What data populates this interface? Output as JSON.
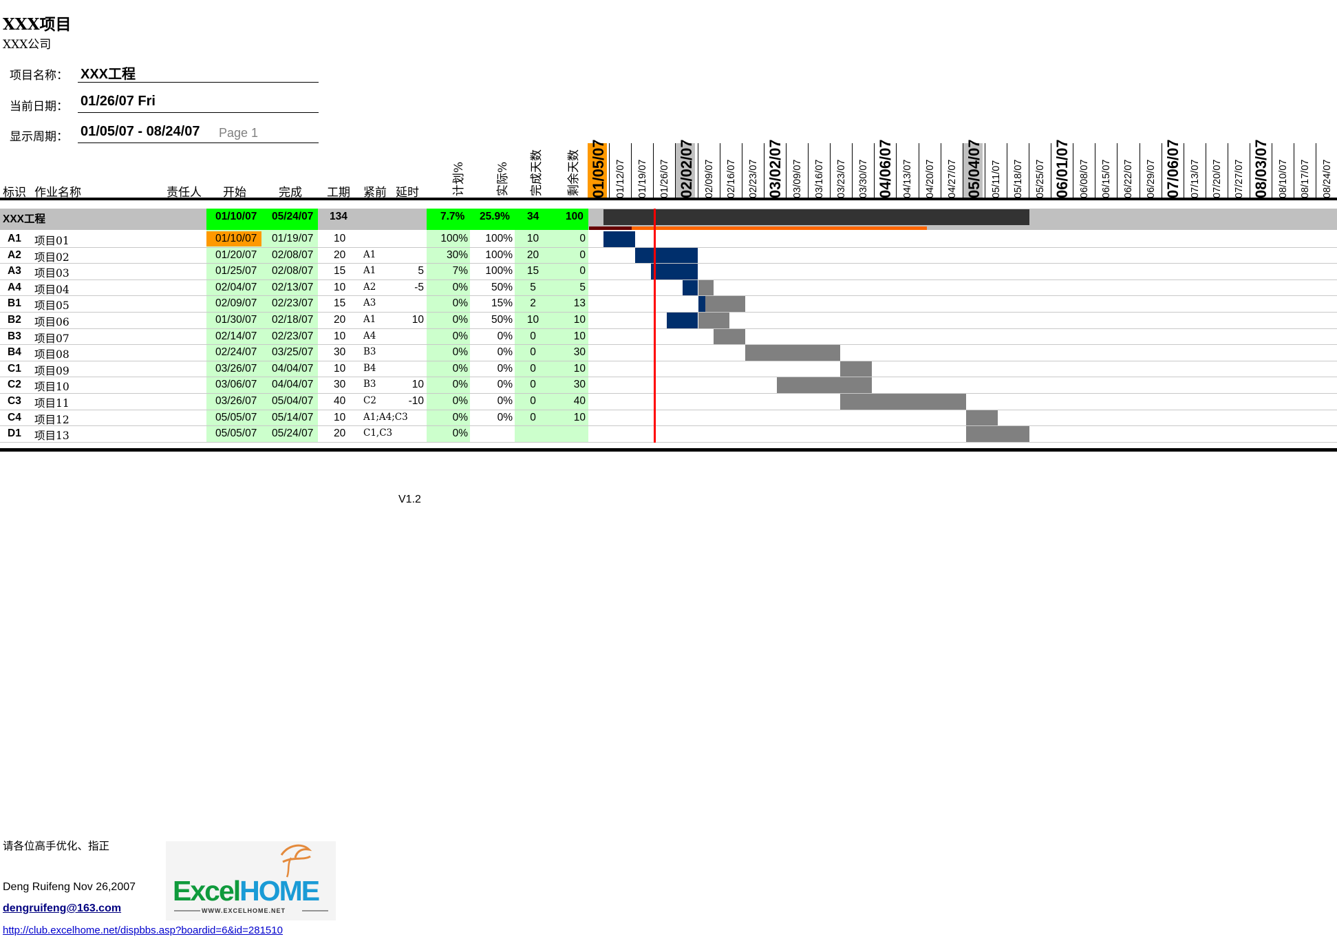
{
  "header": {
    "title": "XXX项目",
    "company": "XXX公司",
    "project_label": "项目名称：",
    "project_value": "XXX工程",
    "date_label": "当前日期：",
    "date_value": "01/26/07 Fri",
    "period_label": "显示周期：",
    "period_value": "01/05/07 - 08/24/07",
    "page": "Page 1"
  },
  "columns": {
    "id": "标识",
    "name": "作业名称",
    "owner": "责任人",
    "start": "开始",
    "finish": "完成",
    "duration": "工期",
    "pred": "紧前",
    "delay": "延时",
    "plan_pct": "计划%",
    "actual_pct": "实际%",
    "done_days": "完成天数",
    "remain_days": "剩余天数"
  },
  "summary": {
    "name": "XXX工程",
    "start": "01/10/07",
    "finish": "05/24/07",
    "duration": "134",
    "plan_pct": "7.7%",
    "actual_pct": "25.9%",
    "done_days": "34",
    "remain_days": "100"
  },
  "tasks": [
    {
      "id": "A1",
      "name": "项目01",
      "start": "01/10/07",
      "finish": "01/19/07",
      "duration": "10",
      "pred": "",
      "delay": "",
      "plan": "100%",
      "actual": "100%",
      "done": "10",
      "remain": "0"
    },
    {
      "id": "A2",
      "name": "项目02",
      "start": "01/20/07",
      "finish": "02/08/07",
      "duration": "20",
      "pred": "A1",
      "delay": "",
      "plan": "30%",
      "actual": "100%",
      "done": "20",
      "remain": "0"
    },
    {
      "id": "A3",
      "name": "项目03",
      "start": "01/25/07",
      "finish": "02/08/07",
      "duration": "15",
      "pred": "A1",
      "delay": "5",
      "plan": "7%",
      "actual": "100%",
      "done": "15",
      "remain": "0"
    },
    {
      "id": "A4",
      "name": "项目04",
      "start": "02/04/07",
      "finish": "02/13/07",
      "duration": "10",
      "pred": "A2",
      "delay": "-5",
      "plan": "0%",
      "actual": "50%",
      "done": "5",
      "remain": "5"
    },
    {
      "id": "B1",
      "name": "项目05",
      "start": "02/09/07",
      "finish": "02/23/07",
      "duration": "15",
      "pred": "A3",
      "delay": "",
      "plan": "0%",
      "actual": "15%",
      "done": "2",
      "remain": "13"
    },
    {
      "id": "B2",
      "name": "项目06",
      "start": "01/30/07",
      "finish": "02/18/07",
      "duration": "20",
      "pred": "A1",
      "delay": "10",
      "plan": "0%",
      "actual": "50%",
      "done": "10",
      "remain": "10"
    },
    {
      "id": "B3",
      "name": "项目07",
      "start": "02/14/07",
      "finish": "02/23/07",
      "duration": "10",
      "pred": "A4",
      "delay": "",
      "plan": "0%",
      "actual": "0%",
      "done": "0",
      "remain": "10"
    },
    {
      "id": "B4",
      "name": "项目08",
      "start": "02/24/07",
      "finish": "03/25/07",
      "duration": "30",
      "pred": "B3",
      "delay": "",
      "plan": "0%",
      "actual": "0%",
      "done": "0",
      "remain": "30"
    },
    {
      "id": "C1",
      "name": "项目09",
      "start": "03/26/07",
      "finish": "04/04/07",
      "duration": "10",
      "pred": "B4",
      "delay": "",
      "plan": "0%",
      "actual": "0%",
      "done": "0",
      "remain": "10"
    },
    {
      "id": "C2",
      "name": "项目10",
      "start": "03/06/07",
      "finish": "04/04/07",
      "duration": "30",
      "pred": "B3",
      "delay": "10",
      "plan": "0%",
      "actual": "0%",
      "done": "0",
      "remain": "30"
    },
    {
      "id": "C3",
      "name": "项目11",
      "start": "03/26/07",
      "finish": "05/04/07",
      "duration": "40",
      "pred": "C2",
      "delay": "-10",
      "plan": "0%",
      "actual": "0%",
      "done": "0",
      "remain": "40"
    },
    {
      "id": "C4",
      "name": "项目12",
      "start": "05/05/07",
      "finish": "05/14/07",
      "duration": "10",
      "pred": "A1;A4;C3",
      "delay": "",
      "plan": "0%",
      "actual": "0%",
      "done": "0",
      "remain": "10"
    },
    {
      "id": "D1",
      "name": "项目13",
      "start": "05/05/07",
      "finish": "05/24/07",
      "duration": "20",
      "pred": "C1,C3",
      "delay": "",
      "plan": "0%",
      "actual": "",
      "done": "",
      "remain": ""
    }
  ],
  "week_dates": [
    {
      "label": "01/05/07",
      "big": true,
      "shade": "#ff9900"
    },
    {
      "label": "01/12/07"
    },
    {
      "label": "01/19/07"
    },
    {
      "label": "01/26/07"
    },
    {
      "label": "02/02/07",
      "big": true,
      "shade": "#c0c0c0"
    },
    {
      "label": "02/09/07"
    },
    {
      "label": "02/16/07"
    },
    {
      "label": "02/23/07"
    },
    {
      "label": "03/02/07",
      "big": true
    },
    {
      "label": "03/09/07"
    },
    {
      "label": "03/16/07"
    },
    {
      "label": "03/23/07"
    },
    {
      "label": "03/30/07"
    },
    {
      "label": "04/06/07",
      "big": true
    },
    {
      "label": "04/13/07"
    },
    {
      "label": "04/20/07"
    },
    {
      "label": "04/27/07"
    },
    {
      "label": "05/04/07",
      "big": true,
      "shade": "#c0c0c0"
    },
    {
      "label": "05/11/07"
    },
    {
      "label": "05/18/07"
    },
    {
      "label": "05/25/07"
    },
    {
      "label": "06/01/07",
      "big": true
    },
    {
      "label": "06/08/07"
    },
    {
      "label": "06/15/07"
    },
    {
      "label": "06/22/07"
    },
    {
      "label": "06/29/07"
    },
    {
      "label": "07/06/07",
      "big": true
    },
    {
      "label": "07/13/07"
    },
    {
      "label": "07/20/07"
    },
    {
      "label": "07/27/07"
    },
    {
      "label": "08/03/07",
      "big": true
    },
    {
      "label": "08/10/07"
    },
    {
      "label": "08/17/07"
    },
    {
      "label": "08/24/07"
    }
  ],
  "colors": {
    "done_bar": "#002f6c",
    "remain_bar": "#808080",
    "summary_dark": "#333333",
    "summary_light": "#c0c0c0",
    "progress_orange": "#ff6600",
    "today_line": "#ff0000",
    "green_light": "#ccffcc",
    "green_bright": "#00ff00",
    "highlight_orange": "#ff9900"
  },
  "footer": {
    "version": "V1.2",
    "note": "请各位高手优化、指正",
    "author": "Deng Ruifeng  Nov 26,2007",
    "email": "dengruifeng@163.com",
    "url": "http://club.excelhome.net/dispbbs.asp?boardid=6&id=281510",
    "logo_text": "ExcelHOME",
    "logo_sub": "WWW.EXCELHOME.NET"
  }
}
